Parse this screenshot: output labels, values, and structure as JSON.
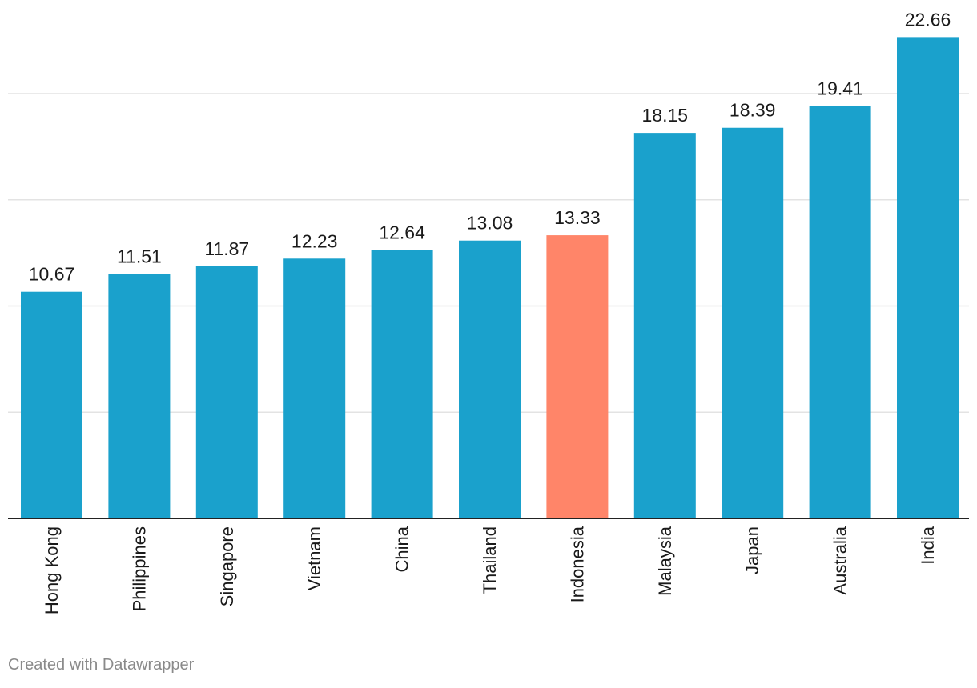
{
  "chart_data": {
    "type": "bar",
    "categories": [
      "Hong Kong",
      "Philippines",
      "Singapore",
      "Vietnam",
      "China",
      "Thailand",
      "Indonesia",
      "Malaysia",
      "Japan",
      "Australia",
      "India"
    ],
    "values": [
      10.67,
      11.51,
      11.87,
      12.23,
      12.64,
      13.08,
      13.33,
      18.15,
      18.39,
      19.41,
      22.66
    ],
    "value_labels": [
      "10.67",
      "11.51",
      "11.87",
      "12.23",
      "12.64",
      "13.08",
      "13.33",
      "18.15",
      "18.39",
      "19.41",
      "22.66"
    ],
    "highlight_category": "Indonesia",
    "colors": {
      "bar": "#1aa1cc",
      "highlight": "#ff8569",
      "grid": "#e3e3e3",
      "baseline": "#222222"
    },
    "gridlines": [
      5,
      10,
      15,
      20
    ],
    "grid": true,
    "ylim": [
      0,
      24
    ],
    "title": "",
    "xlabel": "",
    "ylabel": ""
  },
  "footer": {
    "credit": "Created with Datawrapper"
  }
}
